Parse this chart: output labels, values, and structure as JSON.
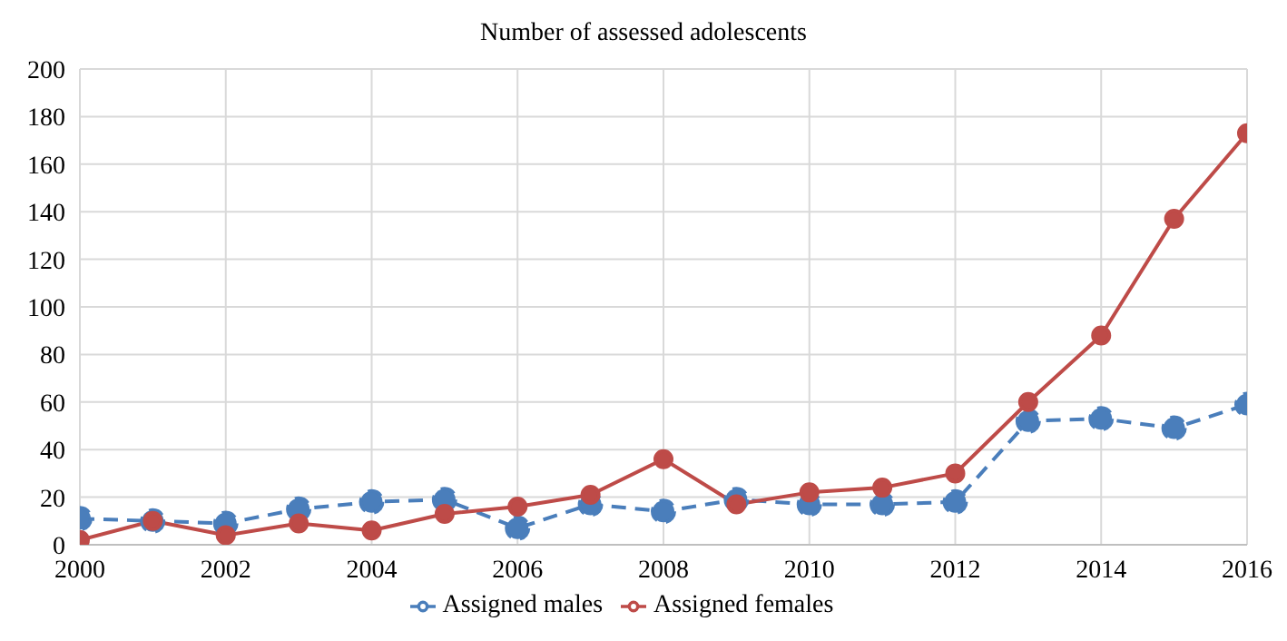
{
  "chart_data": {
    "type": "line",
    "title": "Number of assessed adolescents",
    "x": [
      2000,
      2001,
      2002,
      2003,
      2004,
      2005,
      2006,
      2007,
      2008,
      2009,
      2010,
      2011,
      2012,
      2013,
      2014,
      2015,
      2016
    ],
    "series": [
      {
        "name": "Assigned males",
        "color": "#4a7ebb",
        "line_style": "dashed",
        "values": [
          11,
          10,
          9,
          15,
          18,
          19,
          7,
          17,
          14,
          19,
          17,
          17,
          18,
          52,
          53,
          49,
          59
        ]
      },
      {
        "name": "Assigned females",
        "color": "#be4b48",
        "line_style": "solid",
        "values": [
          2,
          10,
          4,
          9,
          6,
          13,
          16,
          21,
          36,
          17,
          22,
          24,
          30,
          60,
          88,
          137,
          173
        ]
      }
    ],
    "xlim": [
      2000,
      2016
    ],
    "xticks": [
      2000,
      2002,
      2004,
      2006,
      2008,
      2010,
      2012,
      2014,
      2016
    ],
    "ylim": [
      0,
      200
    ],
    "yticks": [
      0,
      20,
      40,
      60,
      80,
      100,
      120,
      140,
      160,
      180,
      200
    ],
    "grid": true,
    "legend": "bottom",
    "marker": "circle"
  }
}
